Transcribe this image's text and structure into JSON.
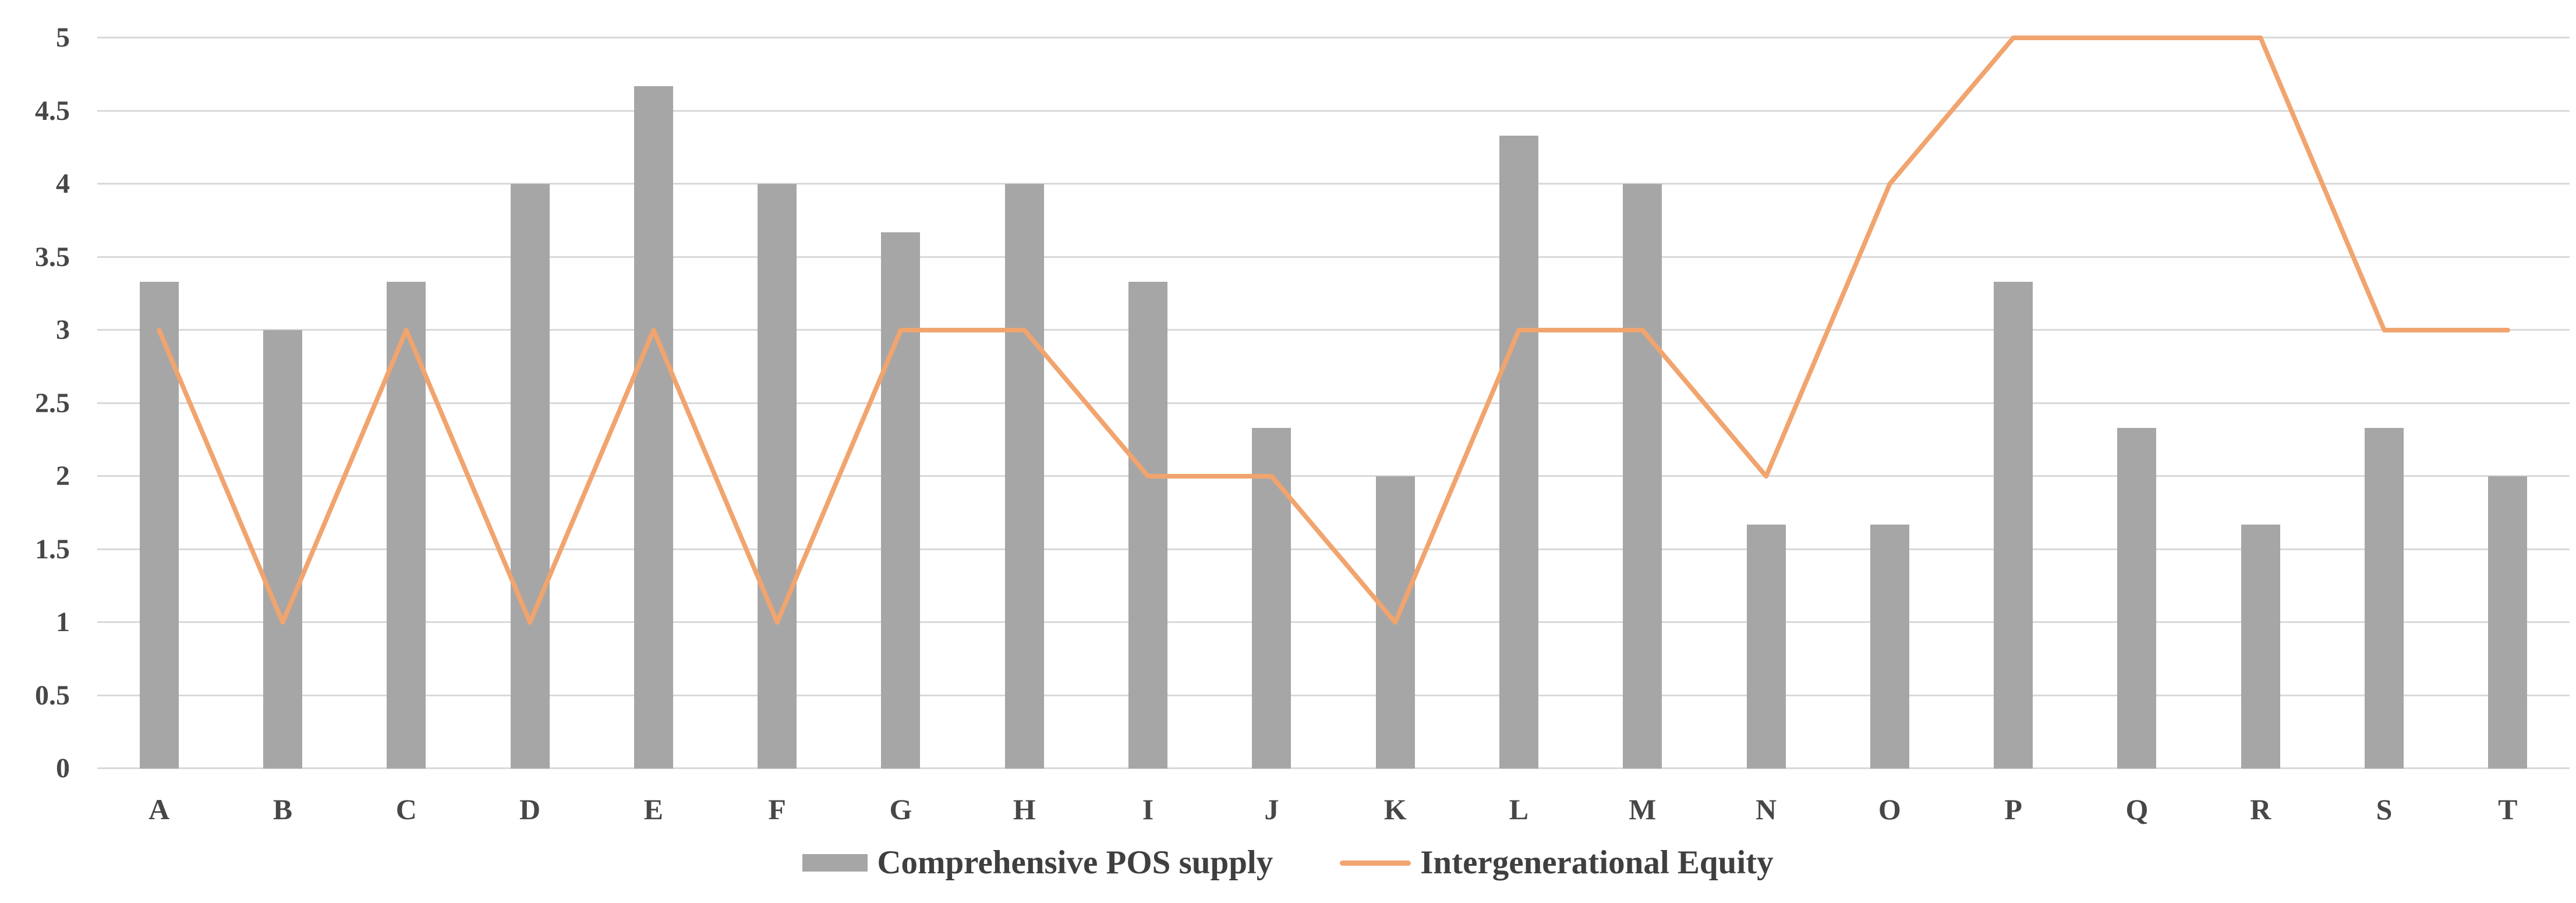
{
  "chart_data": {
    "type": "combo-bar-line",
    "categories": [
      "A",
      "B",
      "C",
      "D",
      "E",
      "F",
      "G",
      "H",
      "I",
      "J",
      "K",
      "L",
      "M",
      "N",
      "O",
      "P",
      "Q",
      "R",
      "S",
      "T"
    ],
    "series": [
      {
        "name": "Comprehensive POS supply",
        "chart_type": "bar",
        "color": "#A6A6A6",
        "values": [
          3.33,
          3,
          3.33,
          4,
          4.67,
          4,
          3.67,
          4,
          3.33,
          2.33,
          2,
          4.33,
          4,
          1.67,
          1.67,
          3.33,
          2.33,
          1.67,
          2.33,
          2
        ]
      },
      {
        "name": "Intergenerational Equity",
        "chart_type": "line",
        "color": "#F1A46E",
        "values": [
          3,
          1,
          3,
          1,
          3,
          1,
          3,
          3,
          2,
          2,
          1,
          3,
          3,
          2,
          4,
          5,
          5,
          5,
          3,
          3
        ]
      }
    ],
    "y_axis": {
      "min": 0,
      "max": 5,
      "step": 0.5,
      "tick_labels": [
        "0",
        "0.5",
        "1",
        "1.5",
        "2",
        "2.5",
        "3",
        "3.5",
        "4",
        "4.5",
        "5"
      ]
    },
    "grid": true,
    "legend_position": "bottom"
  },
  "colors": {
    "bar": "#A6A6A6",
    "line": "#F1A46E",
    "gridline": "#D9D9D9",
    "axis_text": "#474747",
    "legend_text": "#3F3F3F",
    "background": "#FFFFFF"
  }
}
